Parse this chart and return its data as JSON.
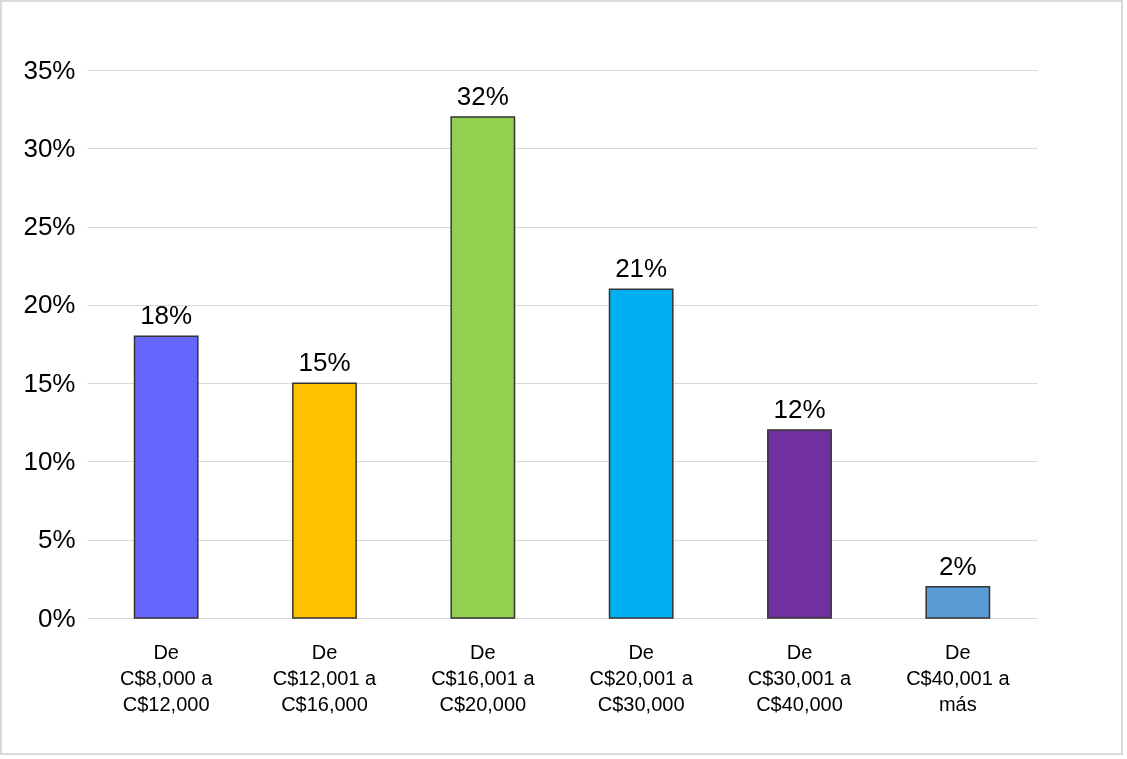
{
  "chart_data": {
    "type": "bar",
    "categories": [
      "De\nC$8,000 a\nC$12,000",
      "De\nC$12,001 a\nC$16,000",
      "De\nC$16,001 a\nC$20,000",
      "De\nC$20,001 a\nC$30,000",
      "De\nC$30,001 a\nC$40,000",
      "De\nC$40,001 a\nmás"
    ],
    "values": [
      18,
      15,
      32,
      21,
      12,
      2
    ],
    "colors": [
      "#6666ff",
      "#ffc000",
      "#92d050",
      "#00b0f0",
      "#7030a0",
      "#5b9bd5"
    ],
    "value_labels": [
      "18%",
      "15%",
      "32%",
      "21%",
      "12%",
      "2%"
    ],
    "ylim": [
      0,
      35
    ],
    "yticks": [
      {
        "value": 0,
        "label": "0%"
      },
      {
        "value": 5,
        "label": "5%"
      },
      {
        "value": 10,
        "label": "10%"
      },
      {
        "value": 15,
        "label": "15%"
      },
      {
        "value": 20,
        "label": "20%"
      },
      {
        "value": 25,
        "label": "25%"
      },
      {
        "value": 30,
        "label": "30%"
      },
      {
        "value": 35,
        "label": "35%"
      }
    ],
    "grid": "y",
    "legend": false
  }
}
